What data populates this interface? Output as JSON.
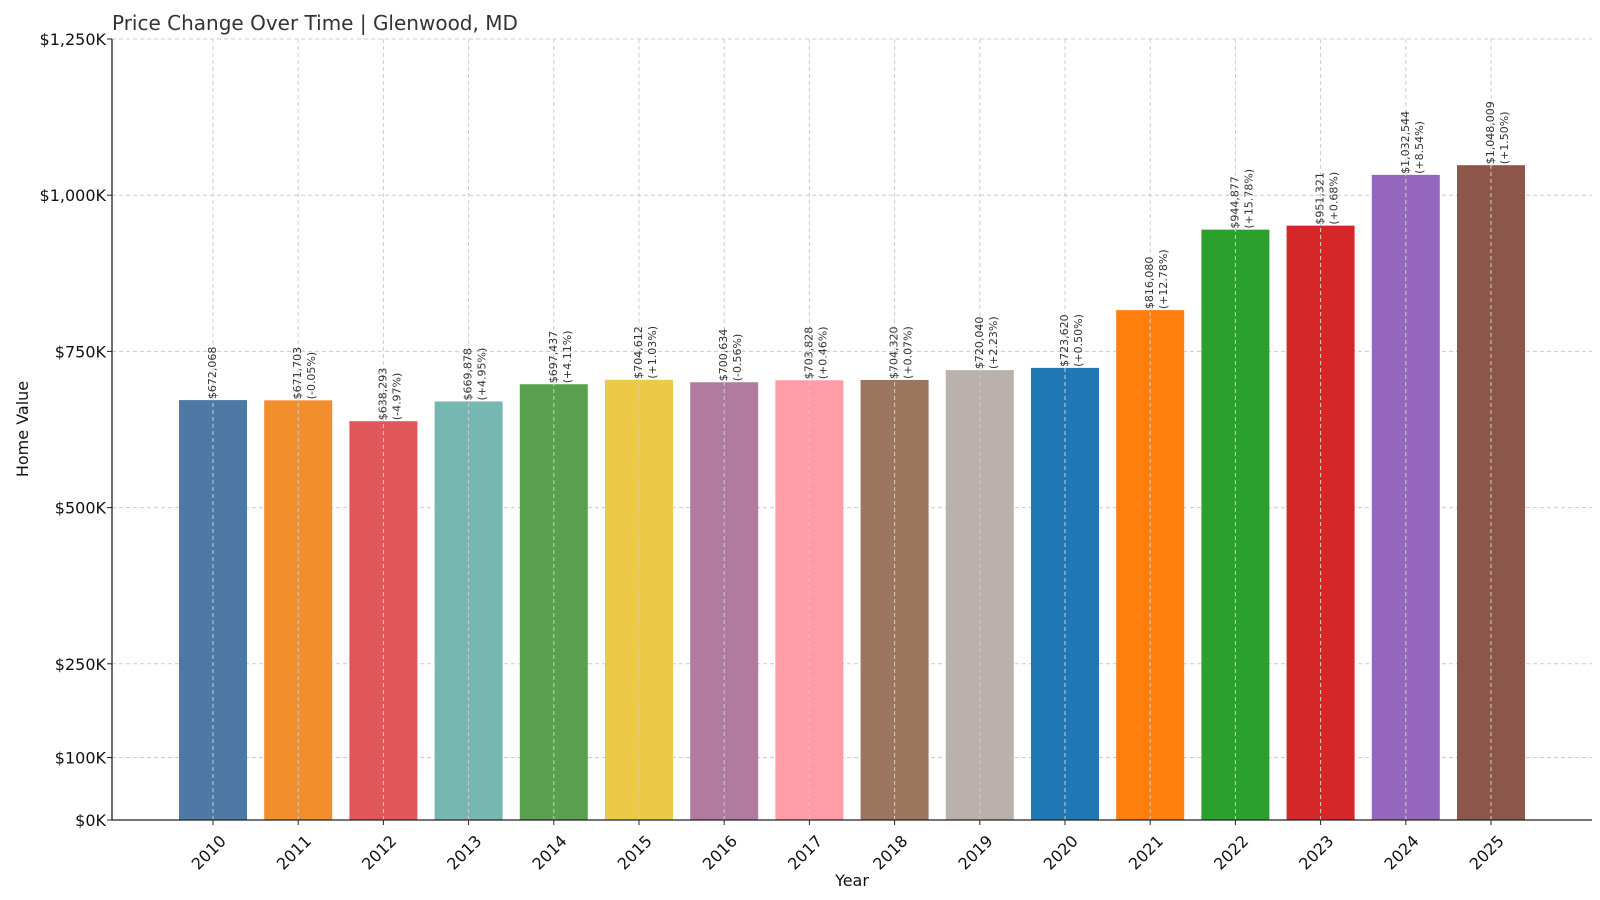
{
  "chart_data": {
    "type": "bar",
    "title": "Price Change Over Time | Glenwood, MD",
    "xlabel": "Year",
    "ylabel": "Home Value",
    "ylim": [
      0,
      1250000
    ],
    "grid": true,
    "y_ticks": [
      {
        "value": 0,
        "label": "$0K"
      },
      {
        "value": 100000,
        "label": "$100K"
      },
      {
        "value": 250000,
        "label": "$250K"
      },
      {
        "value": 500000,
        "label": "$500K"
      },
      {
        "value": 750000,
        "label": "$750K"
      },
      {
        "value": 1000000,
        "label": "$1,000K"
      },
      {
        "value": 1250000,
        "label": "$1,250K"
      }
    ],
    "categories": [
      "2010",
      "2011",
      "2012",
      "2013",
      "2014",
      "2015",
      "2016",
      "2017",
      "2018",
      "2019",
      "2020",
      "2021",
      "2022",
      "2023",
      "2024",
      "2025"
    ],
    "values": [
      672068,
      671703,
      638293,
      669878,
      697437,
      704612,
      700634,
      703828,
      704320,
      720040,
      723620,
      816080,
      944877,
      951321,
      1032544,
      1048009
    ],
    "value_labels": [
      "$672,068",
      "$671,703",
      "$638,293",
      "$669,878",
      "$697,437",
      "$704,612",
      "$700,634",
      "$703,828",
      "$704,320",
      "$720,040",
      "$723,620",
      "$816,080",
      "$944,877",
      "$951,321",
      "$1,032,544",
      "$1,048,009"
    ],
    "change_labels": [
      "",
      "(-0.05%)",
      "(-4.97%)",
      "(+4.95%)",
      "(+4.11%)",
      "(+1.03%)",
      "(-0.56%)",
      "(+0.46%)",
      "(+0.07%)",
      "(+2.23%)",
      "(+0.50%)",
      "(+12.78%)",
      "(+15.78%)",
      "(+0.68%)",
      "(+8.54%)",
      "(+1.50%)"
    ],
    "colors": [
      "#4e79a7",
      "#f28e2b",
      "#e15759",
      "#76b7b2",
      "#59a14f",
      "#edc948",
      "#b07aa1",
      "#ff9da7",
      "#9c755f",
      "#bab0ac",
      "#1f77b4",
      "#ff7f0e",
      "#2ca02c",
      "#d62728",
      "#9467bd",
      "#8c564b"
    ]
  }
}
